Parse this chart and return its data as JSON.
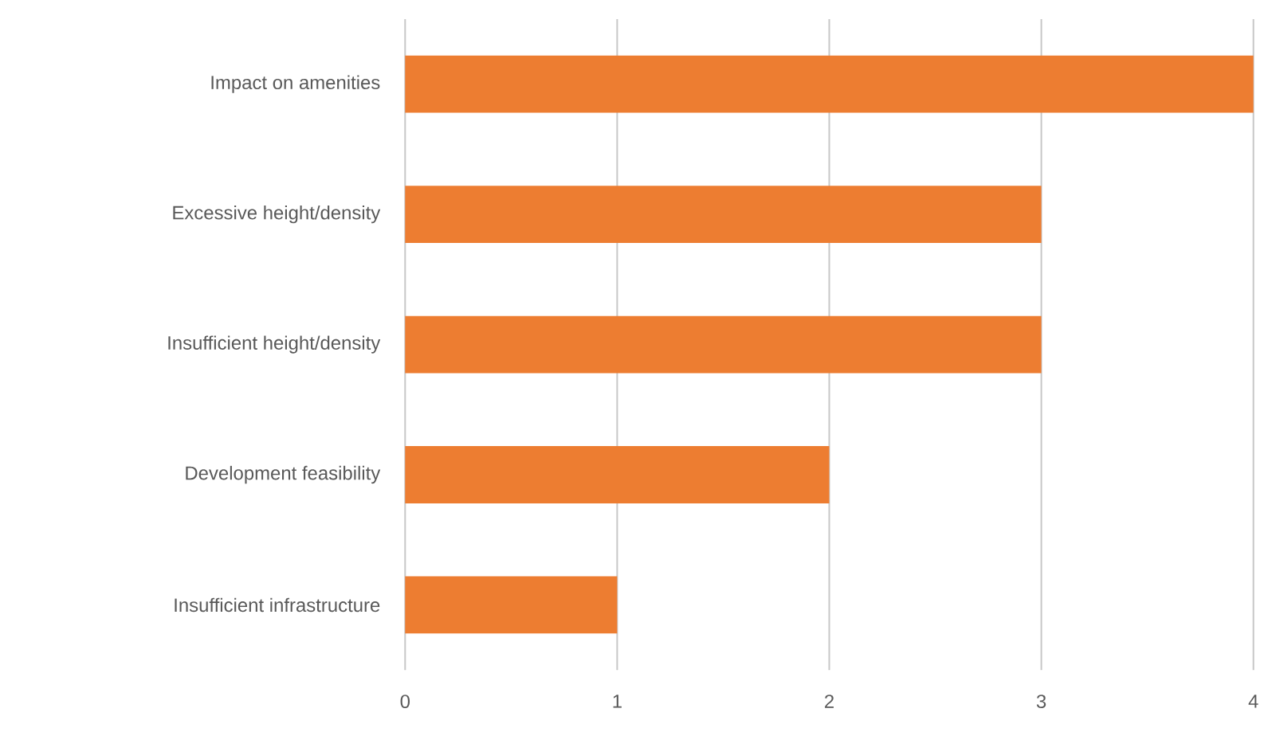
{
  "chart_data": {
    "type": "bar",
    "orientation": "horizontal",
    "categories": [
      "Impact on amenities",
      "Excessive height/density",
      "Insufficient height/density",
      "Development feasibility",
      "Insufficient infrastructure"
    ],
    "values": [
      4,
      3,
      3,
      2,
      1
    ],
    "color": "#ed7d31",
    "xlim": [
      0,
      4
    ],
    "xticks": [
      0,
      1,
      2,
      3,
      4
    ],
    "grid": "x"
  }
}
